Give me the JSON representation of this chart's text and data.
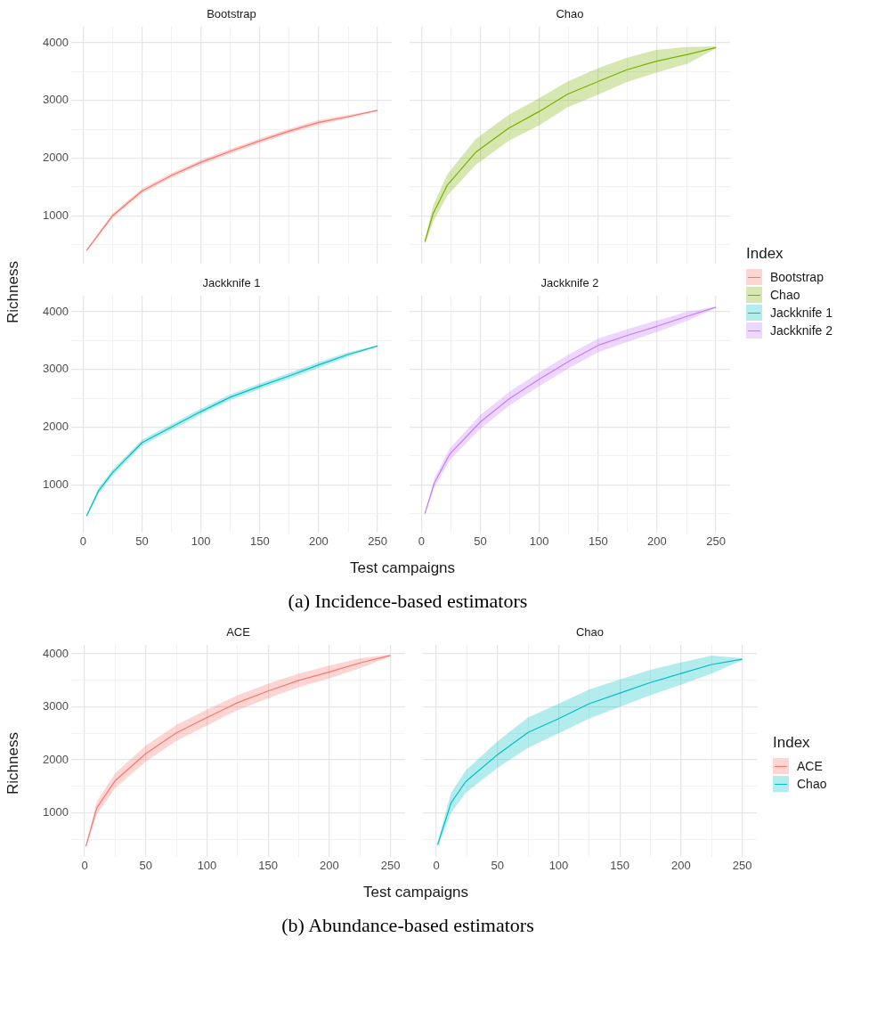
{
  "chart_data": [
    {
      "type": "line",
      "title": "Bootstrap",
      "tick_labels": "y",
      "grid": true,
      "xlim": [
        -10,
        262
      ],
      "ylim": [
        170,
        4280
      ],
      "xticks": [
        0,
        {
          "value": 25,
          "label": null
        },
        50,
        {
          "value": 75,
          "label": null
        },
        100,
        {
          "value": 125,
          "label": null
        },
        150,
        {
          "value": 175,
          "label": null
        },
        200,
        {
          "value": 225,
          "label": null
        },
        250
      ],
      "yticks": [
        {
          "value": 500,
          "label": null
        },
        1000,
        {
          "value": 1500,
          "label": null
        },
        2000,
        {
          "value": 2500,
          "label": null
        },
        3000,
        {
          "value": 3500,
          "label": null
        },
        4000
      ],
      "x": [
        3,
        25,
        50,
        75,
        100,
        125,
        150,
        175,
        200,
        225,
        250
      ],
      "series": [
        {
          "name": "Bootstrap",
          "color": "#f8766d",
          "values": [
            400,
            1000,
            1430,
            1700,
            1930,
            2120,
            2300,
            2470,
            2620,
            2720,
            2830
          ],
          "lower": [
            380,
            960,
            1390,
            1660,
            1890,
            2080,
            2260,
            2430,
            2580,
            2690,
            2820
          ],
          "upper": [
            420,
            1040,
            1470,
            1740,
            1970,
            2160,
            2340,
            2510,
            2660,
            2750,
            2840
          ]
        }
      ]
    },
    {
      "type": "line",
      "title": "Chao",
      "tick_labels": false,
      "grid": true,
      "xlim": [
        -10,
        262
      ],
      "ylim": [
        170,
        4280
      ],
      "xticks": [
        0,
        {
          "value": 25,
          "label": null
        },
        50,
        {
          "value": 75,
          "label": null
        },
        100,
        {
          "value": 125,
          "label": null
        },
        150,
        {
          "value": 175,
          "label": null
        },
        200,
        {
          "value": 225,
          "label": null
        },
        250
      ],
      "yticks": [
        {
          "value": 500,
          "label": null
        },
        1000,
        {
          "value": 1500,
          "label": null
        },
        2000,
        {
          "value": 2500,
          "label": null
        },
        3000,
        {
          "value": 3500,
          "label": null
        },
        4000
      ],
      "x": [
        3,
        10,
        22,
        46,
        74,
        100,
        124,
        150,
        174,
        199,
        226,
        250
      ],
      "series": [
        {
          "name": "Chao",
          "color": "#7cae00",
          "values": [
            550,
            1040,
            1530,
            2100,
            2520,
            2810,
            3110,
            3330,
            3530,
            3680,
            3800,
            3920
          ],
          "lower": [
            500,
            900,
            1350,
            1880,
            2300,
            2570,
            2880,
            3100,
            3320,
            3480,
            3640,
            3900
          ],
          "upper": [
            600,
            1180,
            1720,
            2330,
            2750,
            3040,
            3330,
            3560,
            3740,
            3880,
            3930,
            3940
          ]
        }
      ]
    },
    {
      "type": "line",
      "title": "Jackknife 1",
      "grid": true,
      "xlim": [
        -10,
        262
      ],
      "ylim": [
        170,
        4280
      ],
      "xticks": [
        0,
        {
          "value": 25,
          "label": null
        },
        50,
        {
          "value": 75,
          "label": null
        },
        100,
        {
          "value": 125,
          "label": null
        },
        150,
        {
          "value": 175,
          "label": null
        },
        200,
        {
          "value": 225,
          "label": null
        },
        250
      ],
      "yticks": [
        {
          "value": 500,
          "label": null
        },
        1000,
        {
          "value": 1500,
          "label": null
        },
        2000,
        {
          "value": 2500,
          "label": null
        },
        3000,
        {
          "value": 3500,
          "label": null
        },
        4000
      ],
      "x": [
        3,
        13,
        25,
        50,
        75,
        100,
        125,
        150,
        175,
        200,
        225,
        250
      ],
      "series": [
        {
          "name": "Jackknife 1",
          "color": "#00bfc4",
          "values": [
            460,
            890,
            1210,
            1730,
            2000,
            2270,
            2520,
            2710,
            2890,
            3080,
            3260,
            3410
          ],
          "lower": [
            440,
            840,
            1160,
            1680,
            1950,
            2220,
            2470,
            2660,
            2840,
            3030,
            3220,
            3400
          ],
          "upper": [
            480,
            940,
            1260,
            1780,
            2050,
            2320,
            2570,
            2760,
            2940,
            3130,
            3300,
            3420
          ]
        }
      ]
    },
    {
      "type": "line",
      "title": "Jackknife 2",
      "tick_labels": "x",
      "grid": true,
      "xlabel": "Test campaigns",
      "ylabel": "Richness",
      "legend": "right",
      "legend_title": "Index",
      "annotations": [
        "(a) Incidence-based estimators"
      ],
      "xlim": [
        -10,
        262
      ],
      "ylim": [
        170,
        4280
      ],
      "xticks": [
        0,
        {
          "value": 25,
          "label": null
        },
        50,
        {
          "value": 75,
          "label": null
        },
        100,
        {
          "value": 125,
          "label": null
        },
        150,
        {
          "value": 175,
          "label": null
        },
        200,
        {
          "value": 225,
          "label": null
        },
        250
      ],
      "yticks": [
        {
          "value": 500,
          "label": null
        },
        1000,
        {
          "value": 1500,
          "label": null
        },
        2000,
        {
          "value": 2500,
          "label": null
        },
        3000,
        {
          "value": 3500,
          "label": null
        },
        4000
      ],
      "x": [
        3,
        11,
        24,
        50,
        75,
        100,
        125,
        150,
        176,
        200,
        225,
        250
      ],
      "series": [
        {
          "name": "Jackknife 2",
          "color": "#c77cff",
          "values": [
            500,
            1030,
            1530,
            2090,
            2500,
            2830,
            3140,
            3420,
            3600,
            3750,
            3920,
            4080
          ],
          "lower": [
            480,
            950,
            1430,
            1970,
            2380,
            2710,
            3020,
            3300,
            3490,
            3650,
            3840,
            4070
          ],
          "upper": [
            520,
            1110,
            1630,
            2210,
            2620,
            2950,
            3260,
            3540,
            3710,
            3850,
            4000,
            4090
          ]
        }
      ]
    },
    {
      "type": "line",
      "title": "ACE",
      "grid": true,
      "xlim": [
        -11,
        262
      ],
      "ylim": [
        170,
        4170
      ],
      "xticks": [
        0,
        {
          "value": 25,
          "label": null
        },
        50,
        {
          "value": 75,
          "label": null
        },
        100,
        {
          "value": 125,
          "label": null
        },
        150,
        {
          "value": 175,
          "label": null
        },
        200,
        {
          "value": 225,
          "label": null
        },
        250
      ],
      "yticks": [
        {
          "value": 500,
          "label": null
        },
        1000,
        {
          "value": 1500,
          "label": null
        },
        2000,
        {
          "value": 2500,
          "label": null
        },
        3000,
        {
          "value": 3500,
          "label": null
        },
        4000
      ],
      "x": [
        1,
        10,
        25,
        50,
        75,
        100,
        125,
        150,
        175,
        200,
        225,
        250
      ],
      "series": [
        {
          "name": "ACE",
          "color": "#f8766d",
          "values": [
            370,
            1100,
            1610,
            2120,
            2510,
            2800,
            3080,
            3300,
            3500,
            3660,
            3830,
            3970
          ],
          "lower": [
            340,
            980,
            1470,
            1970,
            2360,
            2650,
            2940,
            3160,
            3370,
            3540,
            3730,
            3950
          ],
          "upper": [
            400,
            1220,
            1750,
            2270,
            2660,
            2950,
            3220,
            3440,
            3630,
            3780,
            3920,
            3990
          ]
        }
      ]
    },
    {
      "type": "line",
      "title": "Chao",
      "tick_labels": "x",
      "grid": true,
      "xlabel": "Test campaigns",
      "ylabel": "Richness",
      "legend": "right",
      "legend_title": "Index",
      "annotations": [
        "(b) Abundance-based estimators"
      ],
      "xlim": [
        -11,
        262
      ],
      "ylim": [
        170,
        4170
      ],
      "xticks": [
        0,
        {
          "value": 25,
          "label": null
        },
        50,
        {
          "value": 75,
          "label": null
        },
        100,
        {
          "value": 125,
          "label": null
        },
        150,
        {
          "value": 175,
          "label": null
        },
        200,
        {
          "value": 225,
          "label": null
        },
        250
      ],
      "yticks": [
        {
          "value": 500,
          "label": null
        },
        1000,
        {
          "value": 1500,
          "label": null
        },
        2000,
        {
          "value": 2500,
          "label": null
        },
        3000,
        {
          "value": 3500,
          "label": null
        },
        4000
      ],
      "x": [
        1,
        12,
        24,
        50,
        75,
        100,
        125,
        150,
        175,
        200,
        225,
        250
      ],
      "series": [
        {
          "name": "Chao",
          "color": "#00bfc4",
          "values": [
            400,
            1190,
            1590,
            2100,
            2520,
            2780,
            3060,
            3260,
            3460,
            3630,
            3800,
            3900
          ],
          "lower": [
            350,
            1000,
            1380,
            1850,
            2230,
            2500,
            2780,
            3000,
            3220,
            3420,
            3630,
            3880
          ],
          "upper": [
            450,
            1380,
            1800,
            2350,
            2800,
            3060,
            3330,
            3520,
            3700,
            3840,
            3970,
            3920
          ]
        }
      ]
    }
  ]
}
